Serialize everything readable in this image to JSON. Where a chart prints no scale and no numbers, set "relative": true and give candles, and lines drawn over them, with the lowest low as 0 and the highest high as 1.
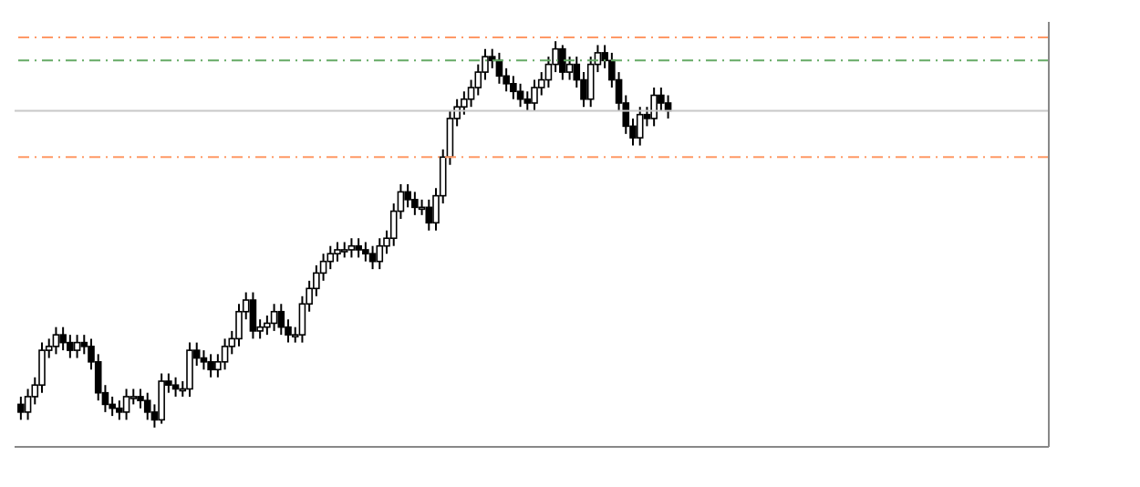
{
  "chart_data": {
    "type": "candlestick",
    "relative": true,
    "color": "#000000",
    "grid": false,
    "categories": [
      null,
      null,
      null,
      null,
      null,
      null,
      null,
      null,
      null,
      null,
      null,
      null,
      null,
      null,
      null,
      null,
      null,
      null,
      null,
      null,
      null,
      null,
      null,
      null,
      null,
      null,
      null,
      null,
      null,
      null,
      null,
      null,
      null,
      null,
      null,
      null,
      null,
      null,
      null,
      null,
      null,
      null,
      null,
      null,
      null,
      null,
      null,
      null,
      null,
      null,
      null,
      null,
      null,
      null,
      null,
      null,
      null,
      null,
      null,
      null,
      null,
      null,
      null,
      null,
      null,
      null,
      null,
      null,
      null,
      null,
      null,
      null,
      null,
      null,
      null,
      null,
      null,
      null,
      null,
      null,
      null,
      null,
      null,
      null,
      null,
      null,
      null,
      null,
      null,
      null,
      null,
      null,
      null
    ],
    "ohlc": [
      [
        0.06,
        0.08,
        0.02,
        0.04
      ],
      [
        0.04,
        0.1,
        0.02,
        0.08
      ],
      [
        0.08,
        0.13,
        0.06,
        0.11
      ],
      [
        0.11,
        0.22,
        0.09,
        0.2
      ],
      [
        0.2,
        0.23,
        0.18,
        0.21
      ],
      [
        0.21,
        0.26,
        0.19,
        0.24
      ],
      [
        0.24,
        0.26,
        0.2,
        0.22
      ],
      [
        0.22,
        0.24,
        0.18,
        0.2
      ],
      [
        0.2,
        0.24,
        0.18,
        0.22
      ],
      [
        0.22,
        0.24,
        0.19,
        0.21
      ],
      [
        0.21,
        0.23,
        0.15,
        0.17
      ],
      [
        0.17,
        0.19,
        0.07,
        0.09
      ],
      [
        0.09,
        0.11,
        0.04,
        0.06
      ],
      [
        0.06,
        0.08,
        0.03,
        0.05
      ],
      [
        0.05,
        0.07,
        0.02,
        0.04
      ],
      [
        0.04,
        0.1,
        0.02,
        0.08
      ],
      [
        0.08,
        0.1,
        0.06,
        0.08
      ],
      [
        0.08,
        0.1,
        0.05,
        0.07
      ],
      [
        0.07,
        0.09,
        0.02,
        0.04
      ],
      [
        0.04,
        0.06,
        0,
        0.02
      ],
      [
        0.02,
        0.14,
        0.01,
        0.12
      ],
      [
        0.12,
        0.14,
        0.09,
        0.11
      ],
      [
        0.11,
        0.13,
        0.08,
        0.1
      ],
      [
        0.1,
        0.12,
        0.08,
        0.1
      ],
      [
        0.1,
        0.22,
        0.08,
        0.2
      ],
      [
        0.2,
        0.22,
        0.16,
        0.18
      ],
      [
        0.18,
        0.2,
        0.15,
        0.17
      ],
      [
        0.17,
        0.19,
        0.13,
        0.15
      ],
      [
        0.15,
        0.19,
        0.13,
        0.17
      ],
      [
        0.17,
        0.23,
        0.15,
        0.21
      ],
      [
        0.21,
        0.25,
        0.19,
        0.23
      ],
      [
        0.23,
        0.32,
        0.21,
        0.3
      ],
      [
        0.3,
        0.35,
        0.28,
        0.33
      ],
      [
        0.33,
        0.35,
        0.23,
        0.25
      ],
      [
        0.25,
        0.28,
        0.23,
        0.26
      ],
      [
        0.26,
        0.29,
        0.24,
        0.27
      ],
      [
        0.27,
        0.32,
        0.25,
        0.3
      ],
      [
        0.3,
        0.32,
        0.24,
        0.26
      ],
      [
        0.26,
        0.28,
        0.22,
        0.24
      ],
      [
        0.24,
        0.26,
        0.22,
        0.24
      ],
      [
        0.24,
        0.34,
        0.22,
        0.32
      ],
      [
        0.32,
        0.38,
        0.3,
        0.36
      ],
      [
        0.36,
        0.42,
        0.34,
        0.4
      ],
      [
        0.4,
        0.45,
        0.38,
        0.43
      ],
      [
        0.43,
        0.47,
        0.41,
        0.45
      ],
      [
        0.45,
        0.48,
        0.43,
        0.46
      ],
      [
        0.46,
        0.48,
        0.44,
        0.46
      ],
      [
        0.46,
        0.49,
        0.44,
        0.47
      ],
      [
        0.47,
        0.49,
        0.44,
        0.46
      ],
      [
        0.46,
        0.48,
        0.43,
        0.45
      ],
      [
        0.45,
        0.47,
        0.41,
        0.43
      ],
      [
        0.43,
        0.49,
        0.41,
        0.47
      ],
      [
        0.47,
        0.51,
        0.45,
        0.49
      ],
      [
        0.49,
        0.58,
        0.47,
        0.56
      ],
      [
        0.56,
        0.63,
        0.54,
        0.61
      ],
      [
        0.61,
        0.63,
        0.57,
        0.59
      ],
      [
        0.59,
        0.61,
        0.55,
        0.57
      ],
      [
        0.57,
        0.59,
        0.55,
        0.57
      ],
      [
        0.57,
        0.59,
        0.51,
        0.53
      ],
      [
        0.53,
        0.62,
        0.51,
        0.6
      ],
      [
        0.6,
        0.72,
        0.58,
        0.7
      ],
      [
        0.7,
        0.82,
        0.68,
        0.8
      ],
      [
        0.8,
        0.85,
        0.78,
        0.83
      ],
      [
        0.83,
        0.87,
        0.81,
        0.85
      ],
      [
        0.85,
        0.9,
        0.83,
        0.88
      ],
      [
        0.88,
        0.94,
        0.86,
        0.92
      ],
      [
        0.92,
        0.98,
        0.9,
        0.96
      ],
      [
        0.96,
        0.98,
        0.93,
        0.95
      ],
      [
        0.95,
        0.97,
        0.89,
        0.91
      ],
      [
        0.91,
        0.93,
        0.87,
        0.89
      ],
      [
        0.89,
        0.91,
        0.85,
        0.87
      ],
      [
        0.87,
        0.89,
        0.83,
        0.85
      ],
      [
        0.85,
        0.87,
        0.82,
        0.84
      ],
      [
        0.84,
        0.9,
        0.82,
        0.88
      ],
      [
        0.88,
        0.92,
        0.86,
        0.9
      ],
      [
        0.9,
        0.96,
        0.88,
        0.94
      ],
      [
        0.94,
        1,
        0.92,
        0.98
      ],
      [
        0.98,
        0.99,
        0.9,
        0.92
      ],
      [
        0.92,
        0.96,
        0.9,
        0.94
      ],
      [
        0.94,
        0.96,
        0.88,
        0.9
      ],
      [
        0.9,
        0.92,
        0.83,
        0.85
      ],
      [
        0.85,
        0.96,
        0.83,
        0.94
      ],
      [
        0.94,
        0.99,
        0.92,
        0.97
      ],
      [
        0.97,
        0.99,
        0.93,
        0.95
      ],
      [
        0.95,
        0.97,
        0.88,
        0.9
      ],
      [
        0.9,
        0.92,
        0.82,
        0.84
      ],
      [
        0.84,
        0.86,
        0.76,
        0.78
      ],
      [
        0.78,
        0.8,
        0.73,
        0.75
      ],
      [
        0.75,
        0.83,
        0.73,
        0.81
      ],
      [
        0.81,
        0.83,
        0.78,
        0.8
      ],
      [
        0.8,
        0.88,
        0.78,
        0.86
      ],
      [
        0.86,
        0.88,
        0.82,
        0.84
      ],
      [
        0.84,
        0.86,
        0.8,
        0.82
      ]
    ],
    "ref_lines": [
      {
        "axis": "y",
        "value": 1.01,
        "color": "#ff9966",
        "line_style": "dashed"
      },
      {
        "axis": "y",
        "value": 0.95,
        "color": "#66aa66",
        "line_style": "dashed"
      },
      {
        "axis": "y",
        "value": 0.82,
        "color": "#c8c8c8",
        "line_style": "solid"
      },
      {
        "axis": "y",
        "value": 0.7,
        "color": "#ff9966",
        "line_style": "dashed"
      }
    ]
  }
}
